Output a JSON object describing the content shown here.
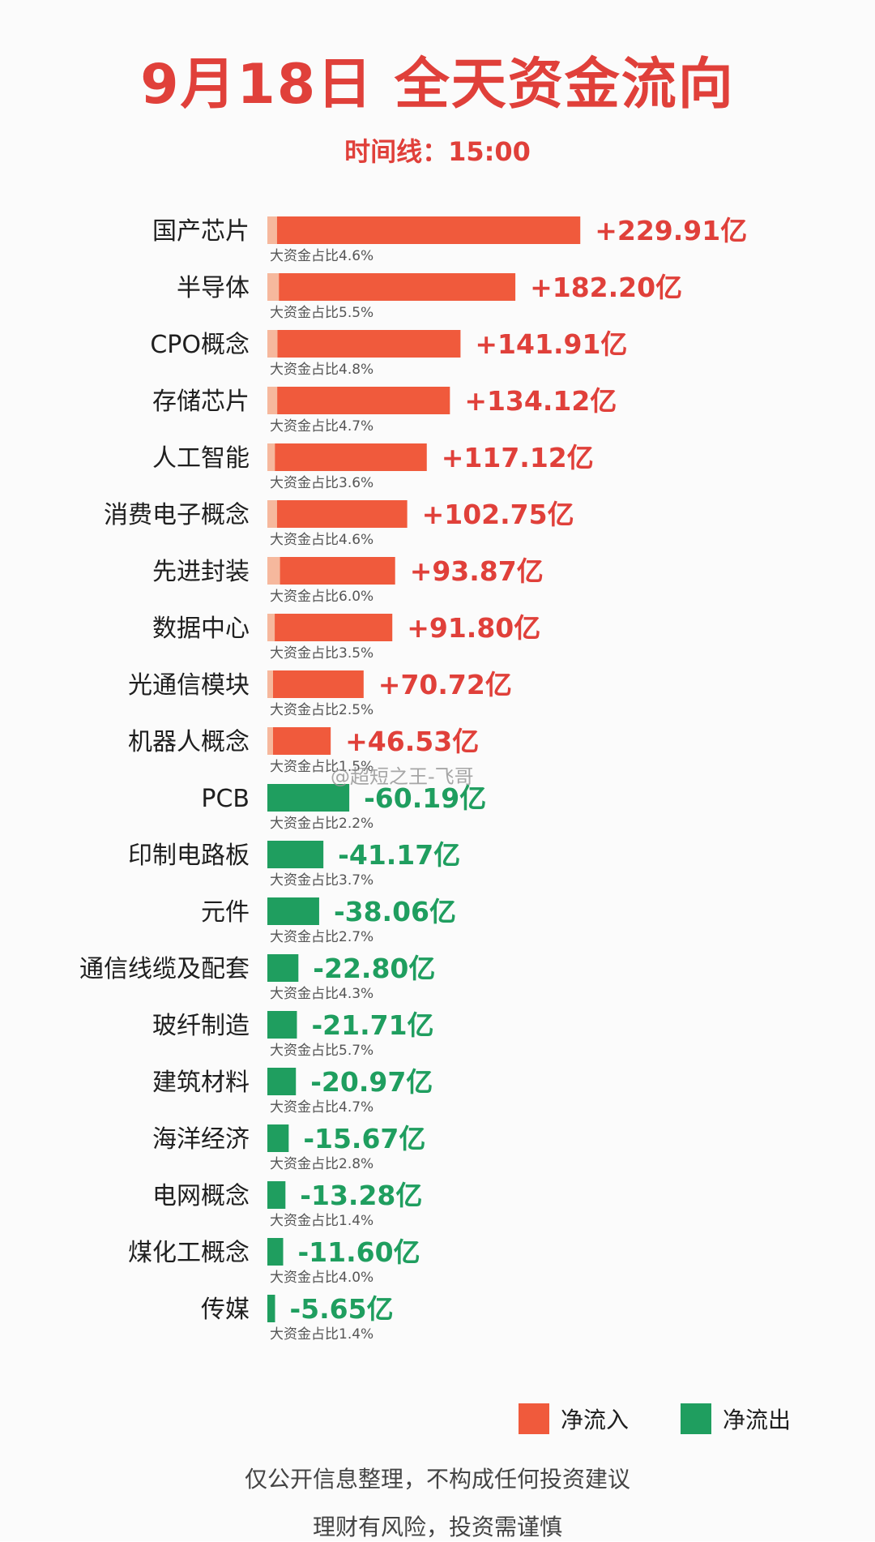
{
  "title": "9月18日 全天资金流向",
  "subtitle": "时间线：15:00",
  "watermark": "@超短之王-飞哥",
  "legend": {
    "inflow_label": "净流入",
    "outflow_label": "净流出"
  },
  "footer": {
    "line1": "仅公开信息整理，不构成任何投资建议",
    "line2": "理财有风险，投资需谨慎"
  },
  "colors": {
    "inflow": "#f05a3c",
    "inflow_light": "#f6b89d",
    "outflow": "#1f9e5f",
    "inflow_text": "#e0403a",
    "outflow_text": "#1f9e5f"
  },
  "chart_data": {
    "type": "bar",
    "orientation": "horizontal",
    "unit": "亿",
    "categories": [
      "国产芯片",
      "半导体",
      "CPO概念",
      "存储芯片",
      "人工智能",
      "消费电子概念",
      "先进封装",
      "数据中心",
      "光通信模块",
      "机器人概念",
      "PCB",
      "印制电路板",
      "元件",
      "通信线缆及配套",
      "玻纤制造",
      "建筑材料",
      "海洋经济",
      "电网概念",
      "煤化工概念",
      "传媒"
    ],
    "values": [
      229.91,
      182.2,
      141.91,
      134.12,
      117.12,
      102.75,
      93.87,
      91.8,
      70.72,
      46.53,
      -60.19,
      -41.17,
      -38.06,
      -22.8,
      -21.71,
      -20.97,
      -15.67,
      -13.28,
      -11.6,
      -5.65
    ],
    "value_labels": [
      "+229.91亿",
      "+182.20亿",
      "+141.91亿",
      "+134.12亿",
      "+117.12亿",
      "+102.75亿",
      "+93.87亿",
      "+91.80亿",
      "+70.72亿",
      "+46.53亿",
      "-60.19亿",
      "-41.17亿",
      "-38.06亿",
      "-22.80亿",
      "-21.71亿",
      "-20.97亿",
      "-15.67亿",
      "-13.28亿",
      "-11.60亿",
      "-5.65亿"
    ],
    "large_fund_share_percent": [
      4.6,
      5.5,
      4.8,
      4.7,
      3.6,
      4.6,
      6.0,
      3.5,
      2.5,
      1.5,
      2.2,
      3.7,
      2.7,
      4.3,
      5.7,
      4.7,
      2.8,
      1.4,
      4.0,
      1.4
    ],
    "share_labels": [
      "大资金占比4.6%",
      "大资金占比5.5%",
      "大资金占比4.8%",
      "大资金占比4.7%",
      "大资金占比3.6%",
      "大资金占比4.6%",
      "大资金占比6.0%",
      "大资金占比3.5%",
      "大资金占比2.5%",
      "大资金占比1.5%",
      "大资金占比2.2%",
      "大资金占比3.7%",
      "大资金占比2.7%",
      "大资金占比4.3%",
      "大资金占比5.7%",
      "大资金占比4.7%",
      "大资金占比2.8%",
      "大资金占比1.4%",
      "大资金占比4.0%",
      "大资金占比1.4%"
    ],
    "legend_position": "bottom-right",
    "grid": false
  }
}
